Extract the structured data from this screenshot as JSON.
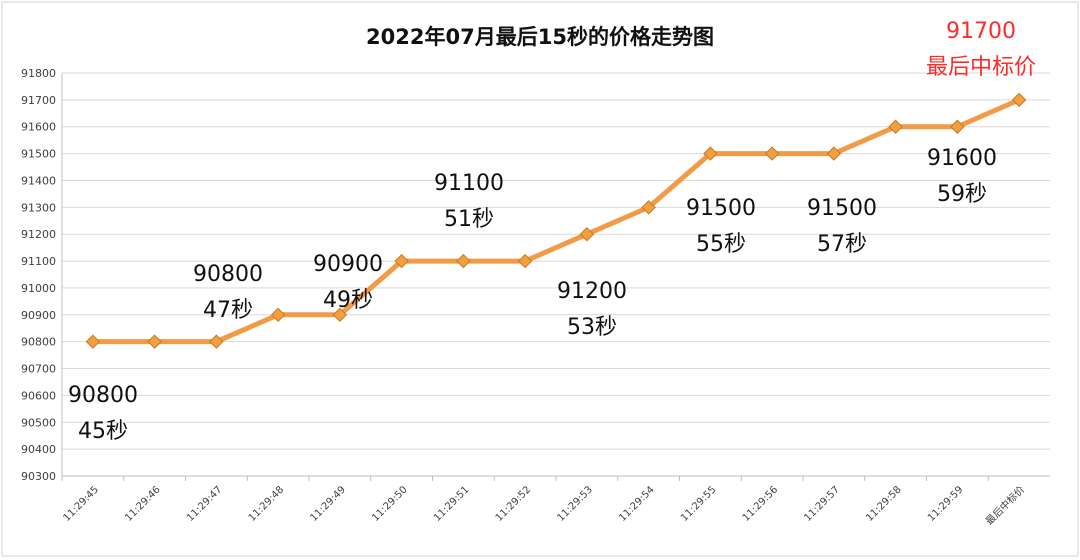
{
  "chart_data": {
    "type": "line",
    "title": "2022年07月最后15秒的价格走势图",
    "categories": [
      "11:29:45",
      "11:29:46",
      "11:29:47",
      "11:29:48",
      "11:29:49",
      "11:29:50",
      "11:29:51",
      "11:29:52",
      "11:29:53",
      "11:29:54",
      "11:29:55",
      "11:29:56",
      "11:29:57",
      "11:29:58",
      "11:29:59",
      "最后中标价"
    ],
    "series": [
      {
        "values": [
          90800,
          90800,
          90800,
          90900,
          90900,
          91100,
          91100,
          91100,
          91200,
          91300,
          91500,
          91500,
          91500,
          91600,
          91600,
          91700
        ]
      }
    ],
    "ylim": [
      90300,
      91800
    ],
    "yticks": [
      90300,
      90400,
      90500,
      90600,
      90700,
      90800,
      90900,
      91000,
      91100,
      91200,
      91300,
      91400,
      91500,
      91600,
      91700,
      91800
    ],
    "grid": true,
    "line_color": "#f29a45",
    "marker_color": "#f0a040",
    "annotations": [
      {
        "price": "90800",
        "time": "45秒",
        "color": "#111111"
      },
      {
        "price": "90800",
        "time": "47秒",
        "color": "#111111"
      },
      {
        "price": "90900",
        "time": "49秒",
        "color": "#111111"
      },
      {
        "price": "91100",
        "time": "51秒",
        "color": "#111111"
      },
      {
        "price": "91200",
        "time": "53秒",
        "color": "#111111"
      },
      {
        "price": "91500",
        "time": "55秒",
        "color": "#111111"
      },
      {
        "price": "91500",
        "time": "57秒",
        "color": "#111111"
      },
      {
        "price": "91600",
        "time": "59秒",
        "color": "#111111"
      },
      {
        "price": "91700",
        "time": "最后中标价",
        "color": "#ff2a2a"
      }
    ]
  }
}
